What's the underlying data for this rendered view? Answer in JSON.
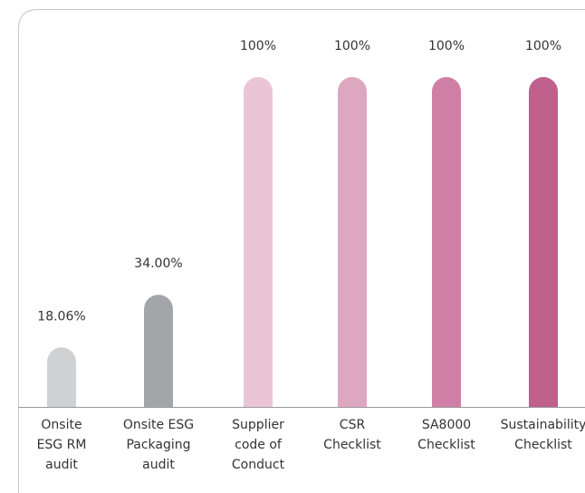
{
  "chart_data": {
    "type": "bar",
    "categories": [
      "Onsite\nESG RM\naudit",
      "Onsite ESG\nPackaging\naudit",
      "Supplier\ncode of\nConduct",
      "CSR\nChecklist",
      "SA8000\nChecklist",
      "Sustainability\nChecklist"
    ],
    "values": [
      18.06,
      34,
      100,
      100,
      100,
      100
    ],
    "value_labels": [
      "18.06%",
      "34.00%",
      "100%",
      "100%",
      "100%",
      "100%"
    ],
    "colors": [
      "#d0d1d3",
      "#a4a5a8",
      "#eac5d6",
      "#dea7c0",
      "#cf7fa5",
      "#c0608d"
    ],
    "ylim": [
      0,
      100
    ]
  }
}
